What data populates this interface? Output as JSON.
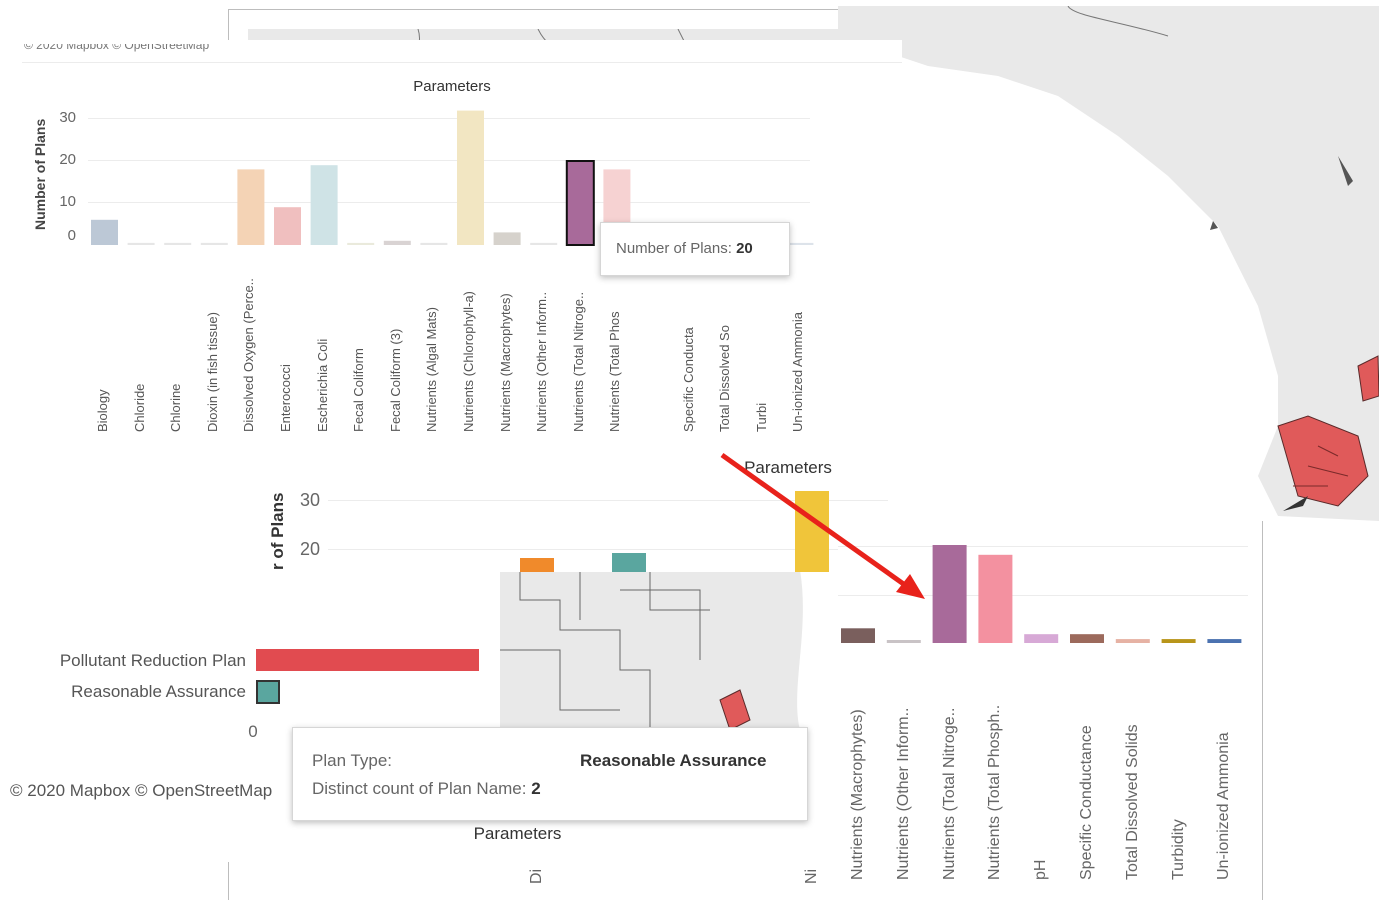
{
  "annotation": {
    "arrow_color": "#e8221b"
  },
  "background_map": {
    "fill": "#e9e9e9",
    "county_stroke": "#666666",
    "highlight_fill": "#e05a5a"
  },
  "top_overlay": {
    "mapbox_caption": "© 2020 Mapbox © OpenStreetMap",
    "title": "Parameters",
    "ylabel": "Number of Plans",
    "yticks": [
      "30",
      "20",
      "10",
      "0"
    ],
    "tooltip": {
      "label": "Number of Plans:",
      "value": "20"
    }
  },
  "bottom_overlay": {
    "title_top": "Parameters",
    "title_bottom": "Parameters",
    "ylabel": "r of Plans",
    "yticks": [
      "30",
      "20"
    ],
    "plan_types": [
      {
        "label": "Pollutant Reduction Plan",
        "color": "#e14b50"
      },
      {
        "label": "Reasonable Assurance",
        "color": "#5aa69f"
      }
    ],
    "zero_tick": "0",
    "mapbox_caption": "© 2020 Mapbox © OpenStreetMap",
    "tooltip": {
      "plan_type_label": "Plan Type:",
      "plan_type_value": "Reasonable Assurance",
      "count_label": "Distinct count of Plan Name:",
      "count_value": "2"
    },
    "truncated_labels": [
      "Di",
      "Ni"
    ]
  },
  "chart_data": [
    {
      "type": "bar",
      "title": "Parameters",
      "ylabel": "Number of Plans",
      "ylim": [
        0,
        33
      ],
      "categories": [
        "Biology",
        "Chloride",
        "Chlorine",
        "Dioxin (in fish tissue)",
        "Dissolved Oxygen (Perce..",
        "Enterococci",
        "Escherichia Coli",
        "Fecal Coliform",
        "Fecal Coliform (3)",
        "Nutrients (Algal Mats)",
        "Nutrients (Chlorophyll-a)",
        "Nutrients (Macrophytes)",
        "Nutrients (Other Inform..",
        "Nutrients (Total Nitroge..",
        "Nutrients (Total Phos",
        "",
        "Specific Conducta",
        "Total Dissolved So",
        "Turbi",
        "Un-ionized Ammonia"
      ],
      "values": [
        6,
        0.5,
        0.5,
        0.5,
        18,
        9,
        19,
        0.5,
        1,
        0.5,
        32,
        3,
        0.5,
        20,
        18,
        0.5,
        0.5,
        0.5,
        0.5,
        0.5
      ],
      "colors": [
        "#bcc8d6",
        "#e6e6e6",
        "#e6e6e6",
        "#e6e6e6",
        "#f4d3b5",
        "#f0bfbf",
        "#cfe3e6",
        "#eaeadc",
        "#d9d3d3",
        "#e6e6e6",
        "#f2e6c2",
        "#d6d2cc",
        "#e6e6e6",
        "#a86a9a",
        "#f6d2d2",
        "#e6e6e6",
        "#e6e6e6",
        "#e6e6e6",
        "#e6e6e6",
        "#dde3ea"
      ],
      "highlight": "Nutrients (Total Nitroge.."
    },
    {
      "type": "bar",
      "categories": [
        "Nutrients (Macrophytes)",
        "Nutrients (Other Inform..",
        "Nutrients (Total Nitroge..",
        "Nutrients (Total Phosph..",
        "pH",
        "Specific Conductance",
        "Total Dissolved Solids",
        "Turbidity",
        "Un-ionized Ammonia"
      ],
      "values": [
        3,
        0.6,
        20,
        18,
        1.8,
        1.8,
        0.8,
        0.8,
        0.8
      ],
      "colors": [
        "#7a5f5d",
        "#c9c3c6",
        "#a86a9a",
        "#f391a0",
        "#d7a9d6",
        "#9c6a5c",
        "#e6b2a4",
        "#b8951a",
        "#4b72b0"
      ],
      "ylim": [
        0,
        33
      ]
    },
    {
      "type": "bar",
      "orientation": "horizontal",
      "categories": [
        "Pollutant Reduction Plan",
        "Reasonable Assurance"
      ],
      "values": [
        22,
        2
      ],
      "colors": [
        "#e14b50",
        "#5aa69f"
      ],
      "xlim": [
        0,
        30
      ]
    }
  ]
}
